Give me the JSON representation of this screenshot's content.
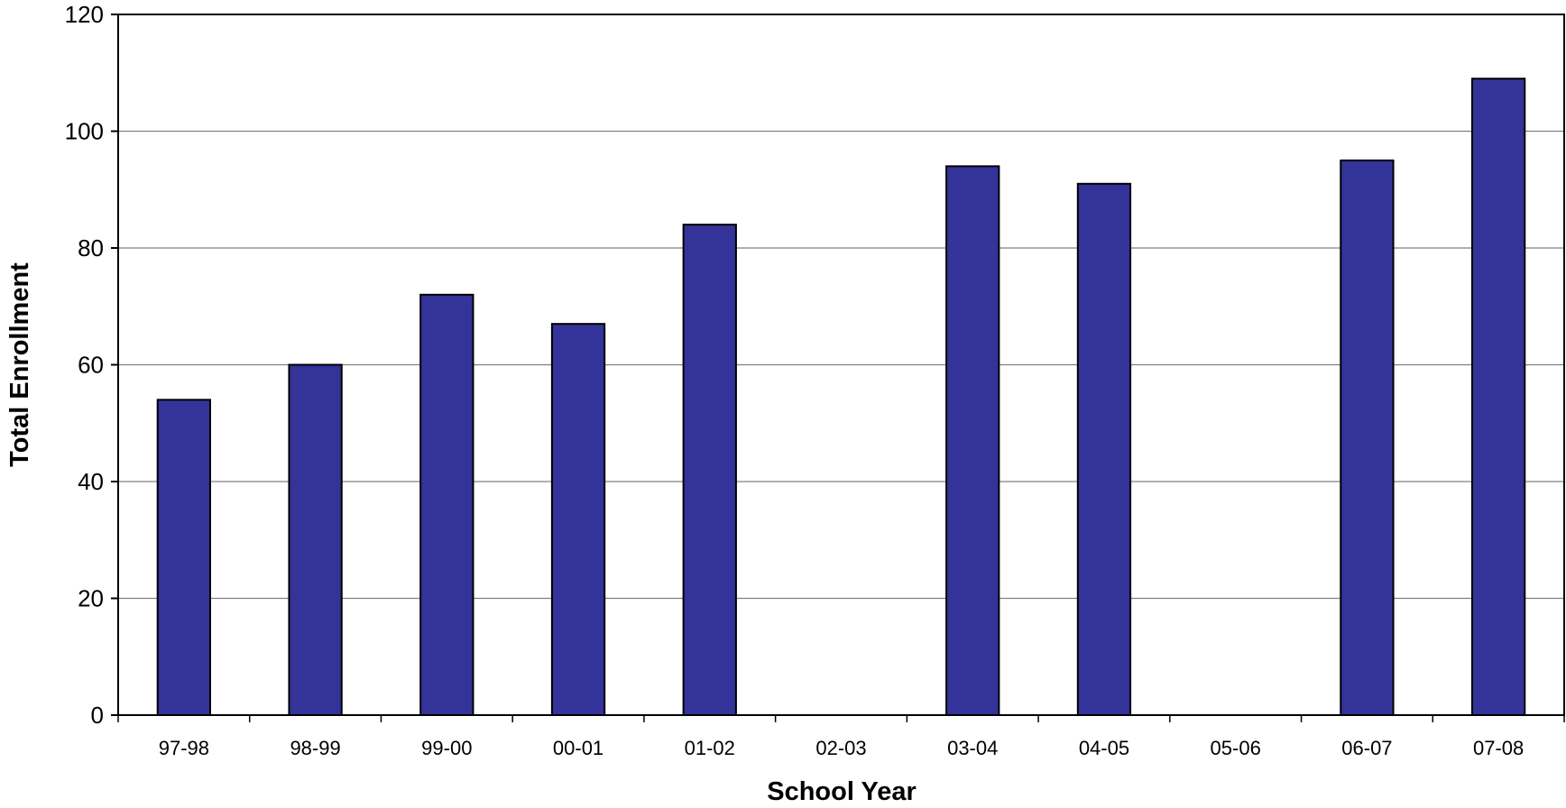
{
  "chart_data": {
    "type": "bar",
    "title": "",
    "xlabel": "School Year",
    "ylabel": "Total Enrollment",
    "categories": [
      "97-98",
      "98-99",
      "99-00",
      "00-01",
      "01-02",
      "02-03",
      "03-04",
      "04-05",
      "05-06",
      "06-07",
      "07-08"
    ],
    "values": [
      54,
      60,
      72,
      67,
      84,
      null,
      94,
      91,
      null,
      95,
      109
    ],
    "ylim": [
      0,
      120
    ],
    "yticks": [
      0,
      20,
      40,
      60,
      80,
      100,
      120
    ],
    "grid": true,
    "legend": "none",
    "bar_color": "#333399",
    "bar_outline_color": "#000000",
    "gridline_color": "#808080"
  }
}
